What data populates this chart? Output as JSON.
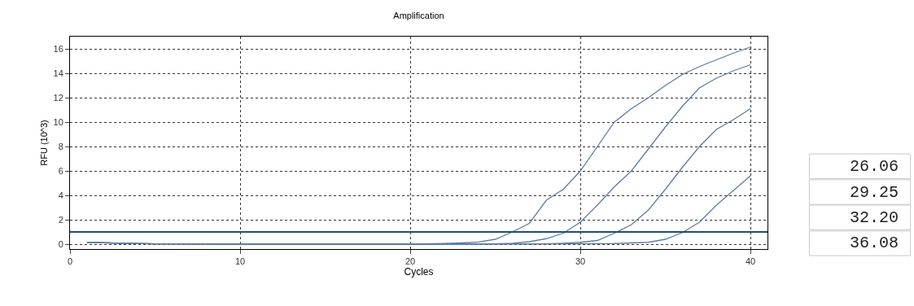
{
  "chart_data": {
    "type": "line",
    "title": "Amplification",
    "xlabel": "Cycles",
    "ylabel": "RFU (10^3)",
    "xlim": [
      0,
      41
    ],
    "ylim": [
      -0.4,
      17
    ],
    "xticks": [
      0,
      10,
      20,
      30,
      40
    ],
    "yticks": [
      0,
      2,
      4,
      6,
      8,
      10,
      12,
      14,
      16
    ],
    "grid": true,
    "marker": "none",
    "series": [
      {
        "color": "#5a7da6",
        "x": [
          1,
          3,
          5,
          10,
          20,
          22,
          23,
          24,
          25,
          26,
          27,
          28,
          29,
          30,
          31,
          32,
          33,
          34,
          35,
          36,
          37,
          38,
          39,
          40
        ],
        "values": [
          0.15,
          0.08,
          0.02,
          0,
          0,
          0.05,
          0.1,
          0.18,
          0.4,
          1.0,
          1.7,
          3.6,
          4.5,
          6.0,
          8.0,
          10.0,
          11.1,
          12.0,
          13.0,
          13.9,
          14.55,
          15.1,
          15.65,
          16.15
        ]
      },
      {
        "color": "#5a7da6",
        "x": [
          1,
          3,
          5,
          10,
          20,
          25,
          26,
          27,
          28,
          29,
          30,
          31,
          32,
          33,
          34,
          35,
          36,
          37,
          38,
          39,
          40
        ],
        "values": [
          0.15,
          0.08,
          0.02,
          0,
          0,
          0.02,
          0.08,
          0.2,
          0.45,
          0.9,
          1.8,
          3.2,
          4.7,
          6.0,
          7.8,
          9.6,
          11.3,
          12.8,
          13.6,
          14.2,
          14.7
        ]
      },
      {
        "color": "#5a7da6",
        "x": [
          1,
          3,
          5,
          10,
          20,
          28,
          29,
          30,
          31,
          32,
          33,
          34,
          35,
          36,
          37,
          38,
          39,
          40
        ],
        "values": [
          0.15,
          0.08,
          0.02,
          0,
          0,
          0.03,
          0.08,
          0.15,
          0.3,
          0.9,
          1.6,
          2.8,
          4.5,
          6.3,
          8.0,
          9.4,
          10.2,
          11.1
        ]
      },
      {
        "color": "#5a7da6",
        "x": [
          1,
          3,
          5,
          10,
          20,
          30,
          32,
          33,
          34,
          35,
          36,
          37,
          38,
          39,
          40
        ],
        "values": [
          0.15,
          0.08,
          0.02,
          0,
          0,
          0.02,
          0.05,
          0.1,
          0.15,
          0.4,
          0.95,
          1.8,
          3.2,
          4.4,
          5.6
        ]
      }
    ],
    "ref_lines": [
      {
        "axis": "y",
        "value": 1,
        "color": "#1f4e79",
        "line_style": "solid"
      }
    ],
    "annotations": [
      "26.06",
      "29.25",
      "32.20",
      "36.08"
    ]
  }
}
